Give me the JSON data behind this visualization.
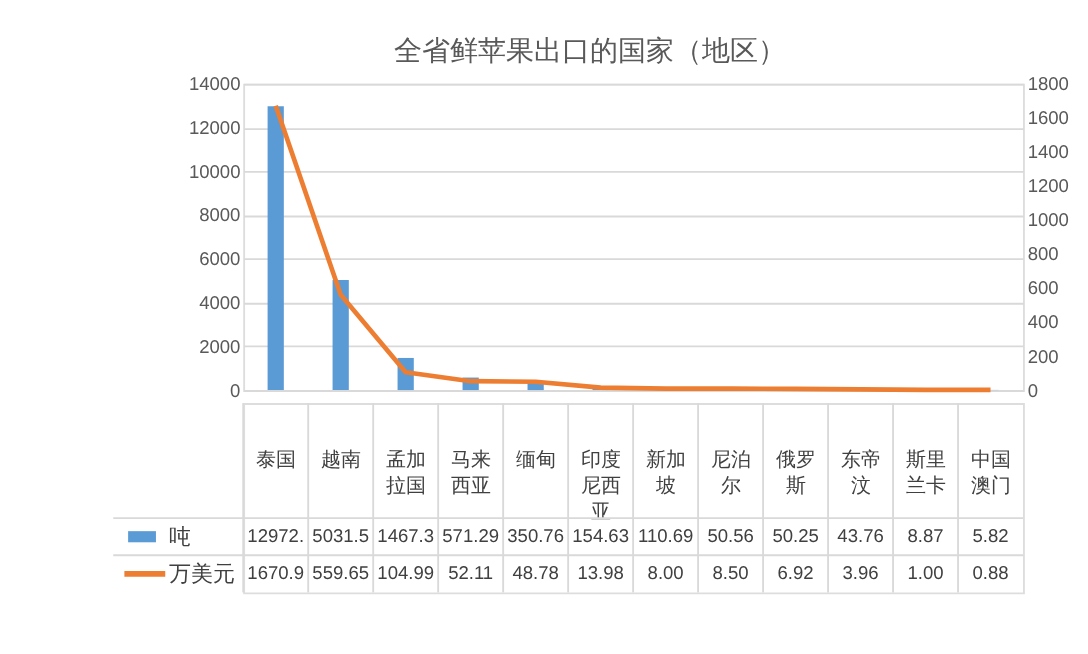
{
  "chart_data": {
    "type": "bar",
    "title": "全省鲜苹果出口的国家（地区）",
    "categories": [
      "泰国",
      "越南",
      "孟加拉国",
      "马来西亚",
      "缅甸",
      "印度尼西亚",
      "新加坡",
      "尼泊尔",
      "俄罗斯",
      "东帝汶",
      "斯里兰卡",
      "中国澳门"
    ],
    "series": [
      {
        "name": "吨",
        "color": "#5b9bd5",
        "values": [
          12972,
          5031.5,
          1467.3,
          571.29,
          350.76,
          154.63,
          110.69,
          50.56,
          50.25,
          43.76,
          8.87,
          5.82
        ],
        "value_labels": [
          "12972.",
          "5031.5",
          "1467.3",
          "571.29",
          "350.76",
          "154.63",
          "110.69",
          "50.56",
          "50.25",
          "43.76",
          "8.87",
          "5.82"
        ]
      },
      {
        "name": "万美元",
        "type": "line",
        "axis": "y2",
        "color": "#ed7d31",
        "values": [
          1670.9,
          559.65,
          104.99,
          52.11,
          48.78,
          13.98,
          8.0,
          8.5,
          6.92,
          3.96,
          1.0,
          0.88
        ],
        "value_labels": [
          "1670.9",
          "559.65",
          "104.99",
          "52.11",
          "48.78",
          "13.98",
          "8.00",
          "8.50",
          "6.92",
          "3.96",
          "1.00",
          "0.88"
        ]
      }
    ],
    "ylim": [
      0,
      14000
    ],
    "yticks": [
      0,
      2000,
      4000,
      6000,
      8000,
      10000,
      12000,
      14000
    ],
    "y2lim": [
      0,
      1800
    ],
    "y2ticks": [
      0,
      200,
      400,
      600,
      800,
      1000,
      1200,
      1400,
      1600,
      1800
    ],
    "grid": "y",
    "legend": "bottom",
    "line_style": "solid",
    "marker": "none"
  }
}
